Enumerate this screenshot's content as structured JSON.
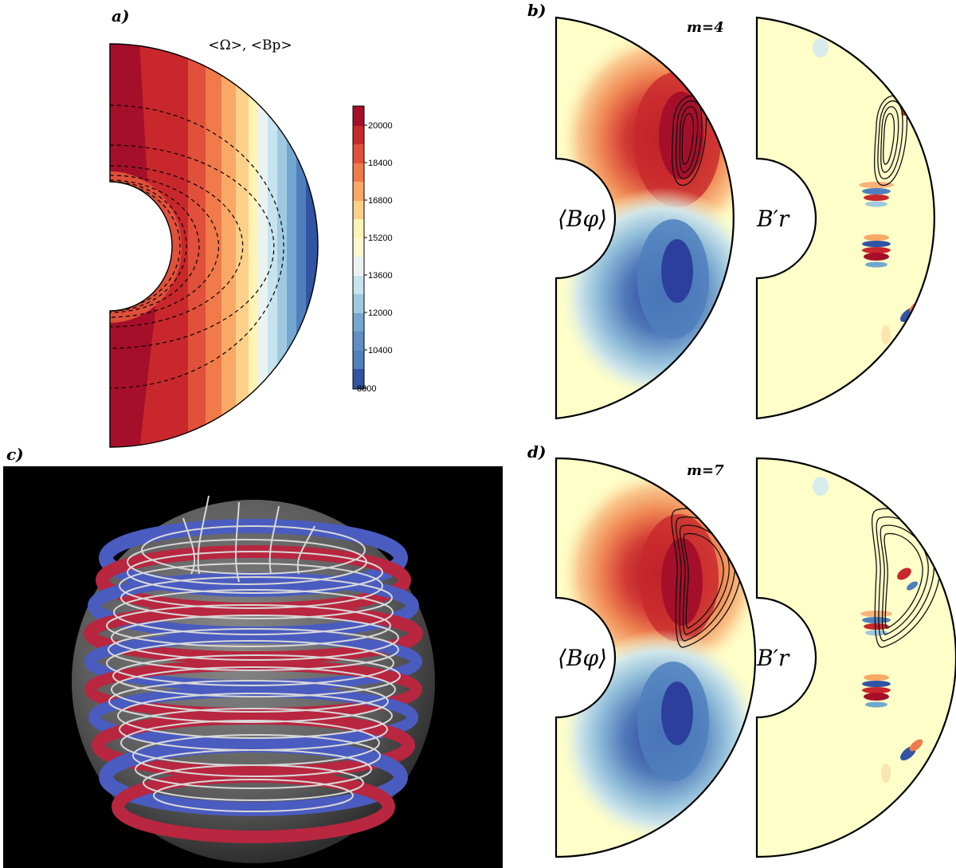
{
  "panels": {
    "a": {
      "label": "a)",
      "title": "<Ω>, <Bp>"
    },
    "b": {
      "label": "b)",
      "mode": "m=4",
      "left_field": "⟨Bφ⟩",
      "right_field": "B′r"
    },
    "c": {
      "label": "c)"
    },
    "d": {
      "label": "d)",
      "mode": "m=7",
      "left_field": "⟨Bφ⟩",
      "right_field": "B′r"
    }
  },
  "colorbar": {
    "ticks": [
      "20000",
      "18400",
      "16800",
      "15200",
      "13600",
      "12000",
      "10400",
      "8800"
    ],
    "colors": [
      "#a50f2a",
      "#c8282c",
      "#e0503a",
      "#f07a4a",
      "#f9a865",
      "#fdd08a",
      "#fff3b5",
      "#e9f4f2",
      "#c6e3ee",
      "#9fc9e0",
      "#74a7cf",
      "#4f7fbd",
      "#3154a3"
    ]
  },
  "colors": {
    "background_core": "#fefec8",
    "red_strong": "#b5122b",
    "blue_strong": "#2d4aa3",
    "render_bg": "#000000",
    "fieldline": "#d8d8d8",
    "tube_red": "#b8263f",
    "tube_blue": "#4a5cc0"
  }
}
